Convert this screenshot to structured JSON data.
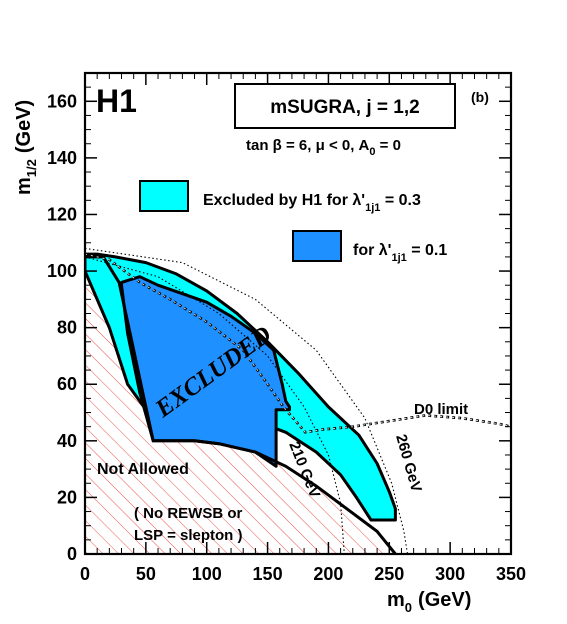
{
  "chart_data": {
    "type": "area",
    "x": {
      "label": "m",
      "label_sub": "0",
      "unit": "(GeV)",
      "lim": [
        0,
        350
      ],
      "ticks": [
        0,
        50,
        100,
        150,
        200,
        250,
        300,
        350
      ]
    },
    "y": {
      "label": "m",
      "label_sub": "1/2",
      "unit": "(GeV)",
      "lim": [
        0,
        170
      ],
      "ticks": [
        0,
        20,
        40,
        60,
        80,
        100,
        120,
        140,
        160
      ]
    },
    "experiment": "H1",
    "panel_tag": "(b)",
    "model_box": "mSUGRA, j = 1,2",
    "params_text": "tan β = 6, μ < 0, A",
    "params_sub": "0",
    "params_tail": " = 0",
    "legend": [
      {
        "name_pre": "Excluded by H1 for λ'",
        "name_sub": "1j1",
        "name_post": " = 0.3",
        "color": "#00ffff"
      },
      {
        "name_pre": "for λ'",
        "name_sub": "1j1",
        "name_post": " = 0.1",
        "color": "#1e90ff"
      }
    ],
    "colors": {
      "light_region": "#00ffff",
      "dark_region": "#1e90ff",
      "hatch": "#e8413c"
    },
    "regions": {
      "excluded_0_3": [
        [
          0,
          106
        ],
        [
          10,
          106
        ],
        [
          25,
          105
        ],
        [
          50,
          103
        ],
        [
          75,
          99
        ],
        [
          100,
          93
        ],
        [
          125,
          85
        ],
        [
          150,
          75
        ],
        [
          175,
          64
        ],
        [
          200,
          52
        ],
        [
          225,
          42
        ],
        [
          240,
          32
        ],
        [
          250,
          22
        ],
        [
          255,
          16
        ],
        [
          255,
          12
        ],
        [
          235,
          12
        ],
        [
          223,
          20
        ],
        [
          210,
          28
        ],
        [
          190,
          36
        ],
        [
          165,
          43
        ],
        [
          140,
          47
        ],
        [
          110,
          50
        ],
        [
          75,
          51
        ],
        [
          50,
          51
        ],
        [
          35,
          60
        ],
        [
          20,
          80
        ],
        [
          0,
          100
        ]
      ],
      "excluded_0_1": [
        [
          30,
          96
        ],
        [
          45,
          98
        ],
        [
          60,
          95
        ],
        [
          80,
          92
        ],
        [
          100,
          89
        ],
        [
          120,
          84
        ],
        [
          140,
          78
        ],
        [
          155,
          72
        ],
        [
          162,
          60
        ],
        [
          165,
          54
        ],
        [
          168,
          52
        ],
        [
          168,
          51
        ],
        [
          157,
          51
        ],
        [
          157,
          31
        ],
        [
          140,
          36
        ],
        [
          110,
          39
        ],
        [
          90,
          40
        ],
        [
          56,
          40
        ],
        [
          45,
          57
        ],
        [
          35,
          78
        ],
        [
          30,
          95
        ]
      ],
      "not_allowed": [
        [
          0,
          105
        ],
        [
          15,
          105
        ],
        [
          28,
          96
        ],
        [
          38,
          76
        ],
        [
          48,
          56
        ],
        [
          56,
          40
        ],
        [
          90,
          40
        ],
        [
          110,
          39
        ],
        [
          140,
          36
        ],
        [
          165,
          31
        ],
        [
          190,
          24
        ],
        [
          215,
          16
        ],
        [
          240,
          8
        ],
        [
          255,
          0
        ],
        [
          0,
          0
        ]
      ],
      "d0_limit": [
        [
          0,
          106
        ],
        [
          20,
          104
        ],
        [
          45,
          96
        ],
        [
          70,
          90
        ],
        [
          100,
          82
        ],
        [
          130,
          72
        ],
        [
          150,
          60
        ],
        [
          163,
          52
        ],
        [
          173,
          47
        ],
        [
          181,
          43
        ],
        [
          195,
          44
        ],
        [
          220,
          45
        ],
        [
          250,
          47
        ],
        [
          280,
          49
        ],
        [
          310,
          48
        ],
        [
          340,
          46
        ],
        [
          350,
          45
        ]
      ],
      "contour_210": [
        [
          0,
          105
        ],
        [
          60,
          98
        ],
        [
          110,
          85
        ],
        [
          150,
          70
        ],
        [
          180,
          52
        ],
        [
          200,
          35
        ],
        [
          210,
          18
        ],
        [
          213,
          0
        ]
      ],
      "contour_260": [
        [
          0,
          108
        ],
        [
          80,
          103
        ],
        [
          140,
          90
        ],
        [
          190,
          72
        ],
        [
          230,
          48
        ],
        [
          252,
          25
        ],
        [
          262,
          8
        ],
        [
          265,
          0
        ]
      ]
    },
    "annotations": {
      "excluded": "EXCLUDED",
      "not_allowed": "Not Allowed",
      "no_rewsb_1": "( No REWSB or",
      "no_rewsb_2": "LSP = slepton )",
      "d0": "D0 limit",
      "c210": "210 GeV",
      "c260": "260 GeV"
    }
  }
}
